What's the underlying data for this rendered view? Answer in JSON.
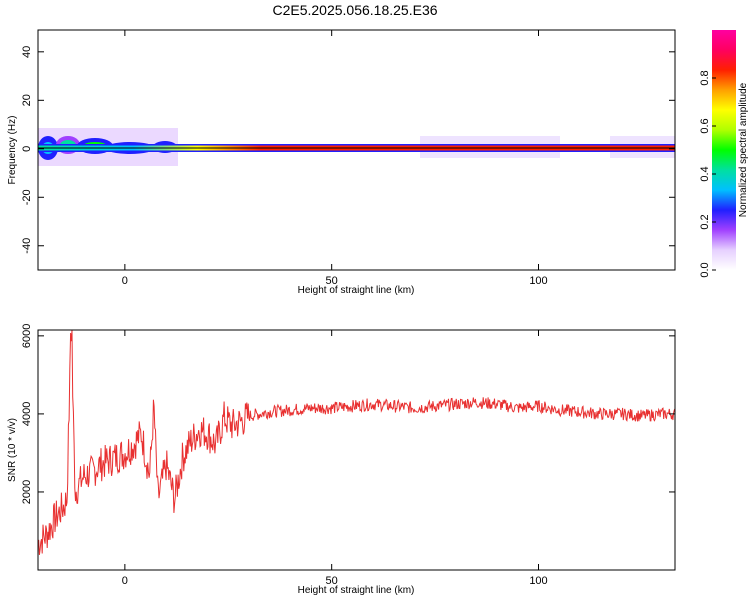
{
  "title": "C2E5.2025.056.18.25.E36",
  "colors": {
    "signal": "#e83030",
    "frame": "#000000"
  },
  "chart_data": [
    {
      "type": "heatmap",
      "title": "",
      "xlabel": "Height of straight line (km)",
      "ylabel": "Frequency (Hz)",
      "xlim": [
        -21,
        133
      ],
      "ylim": [
        -50,
        49
      ],
      "x_ticks": [
        "0",
        "50",
        "100"
      ],
      "y_ticks": [
        "40",
        "20",
        "0",
        "-20",
        "-40"
      ],
      "description_values": {
        "center_frequency_hz": 0,
        "band_width_hz": [
          -3,
          3
        ]
      },
      "colorbar": {
        "label": "Normalized spectral amplitude",
        "range": [
          0,
          1
        ],
        "ticks": [
          "0.0",
          "0.2",
          "0.4",
          "0.6",
          "0.8"
        ],
        "colormap": [
          "#ffffff",
          "#e6d0ff",
          "#a040ff",
          "#2020ff",
          "#00c0ff",
          "#00e0a0",
          "#00ff00",
          "#b0ff00",
          "#ffff00",
          "#ffa000",
          "#ff2000",
          "#ff0060",
          "#ff00a0"
        ]
      }
    },
    {
      "type": "line",
      "title": "",
      "xlabel": "Height of straight line (km)",
      "ylabel": "SNR (10 * v/v)",
      "xlim": [
        -21,
        133
      ],
      "ylim": [
        0,
        6150
      ],
      "x_ticks": [
        "0",
        "50",
        "100"
      ],
      "y_ticks": [
        "6000",
        "4000",
        "2000"
      ],
      "series": [
        {
          "color": "#e83030",
          "x": [
            -21,
            -19,
            -17,
            -15,
            -14,
            -13,
            -12,
            -10,
            -8,
            -6,
            -4,
            -2,
            0,
            2,
            4,
            6,
            7,
            8,
            10,
            12,
            14,
            16,
            18,
            20,
            22,
            24,
            26,
            28,
            30,
            35,
            40,
            45,
            50,
            55,
            60,
            65,
            70,
            75,
            80,
            85,
            90,
            95,
            100,
            105,
            110,
            115,
            120,
            125,
            130,
            133
          ],
          "y": [
            700,
            900,
            1300,
            1600,
            1800,
            6100,
            2000,
            2400,
            2500,
            2700,
            2800,
            2900,
            3000,
            3200,
            3500,
            2400,
            4200,
            1800,
            2700,
            1800,
            2900,
            3300,
            3600,
            3500,
            3200,
            3900,
            3700,
            3800,
            3950,
            4050,
            4100,
            4150,
            4150,
            4200,
            4250,
            4200,
            4150,
            4200,
            4250,
            4300,
            4250,
            4150,
            4200,
            4100,
            4050,
            4000,
            4000,
            3950,
            4000,
            4000
          ]
        }
      ]
    }
  ]
}
